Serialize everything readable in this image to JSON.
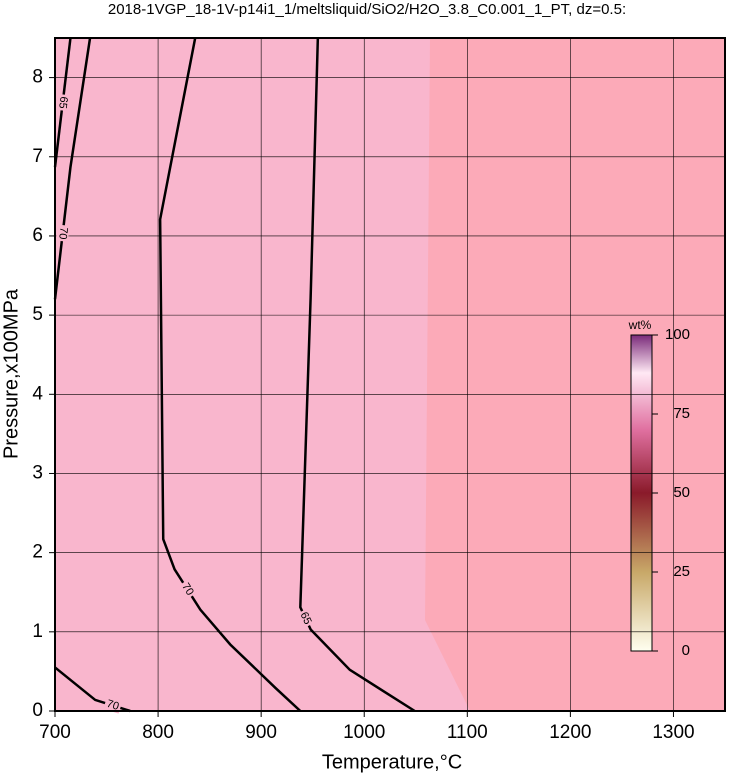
{
  "chart_data": {
    "type": "contour",
    "title": "2018-1VGP_18-1V-p14i1_1/meltsliquid/SiO2/H2O_3.8_C0.001_1_PT, dz=0.5:",
    "x_label": "Temperature,°C",
    "y_label": "Pressure,x100MPa",
    "xlim": [
      700,
      1350
    ],
    "ylim": [
      0,
      8.5
    ],
    "xticks": [
      700,
      800,
      900,
      1000,
      1100,
      1200,
      1300
    ],
    "yticks": [
      0,
      1,
      2,
      3,
      4,
      5,
      6,
      7,
      8
    ],
    "grid": true,
    "color": "#000000",
    "series": [
      {
        "name": "70",
        "x": [
          836,
          802,
          805,
          816,
          841,
          870,
          914,
          938
        ],
        "y": [
          8.5,
          6.21,
          2.17,
          1.79,
          1.28,
          0.84,
          0.29,
          0
        ]
      },
      {
        "name": "65",
        "x": [
          955,
          948,
          938,
          948,
          986,
          1049
        ],
        "y": [
          8.5,
          5.22,
          1.31,
          1.03,
          0.52,
          0
        ]
      },
      {
        "name": "70",
        "x": [
          734,
          715,
          700
        ],
        "y": [
          8.5,
          6.87,
          5.2
        ]
      },
      {
        "name": "65",
        "x": [
          715,
          700
        ],
        "y": [
          8.5,
          6.87
        ]
      },
      {
        "name": "70",
        "x": [
          700,
          739,
          773
        ],
        "y": [
          0.55,
          0.14,
          0
        ]
      }
    ],
    "colorbar": {
      "label": "wt%",
      "lim": [
        0,
        100
      ],
      "ticks": [
        0,
        25,
        50,
        75,
        100
      ]
    }
  }
}
